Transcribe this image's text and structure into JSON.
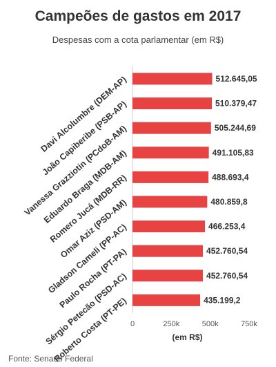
{
  "title": "Campeões de gastos em 2017",
  "subtitle": "Despesas com a cota parlamentar (em R$)",
  "source": "Fonte: Senado Federal",
  "colors": {
    "bar": "#e84343",
    "axis": "#cccccc",
    "grid": "#e6e6e6"
  },
  "chart_data": {
    "type": "bar",
    "orientation": "horizontal",
    "categories": [
      "Davi Alcolumbre (DEM-AP)",
      "João Capiberibe (PSB-AP)",
      "Vanessa Grazziotin (PCdoB-AM)",
      "Eduardo Braga (MDB-AM)",
      "Romero Jucá (MDB-RR)",
      "Omar Aziz (PSD-AM)",
      "Gladson Cameli (PP-AC)",
      "Paulo Rocha (PT-PA)",
      "Sérgio Petecão (PSD-AC)",
      "Roberto Costa (PT-PE)"
    ],
    "values": [
      512645.05,
      510379.47,
      505244.69,
      491105.83,
      488693.4,
      480859.8,
      466253.4,
      452760.54,
      452760.54,
      435199.2
    ],
    "value_labels": [
      "512.645,05",
      "510.379,47",
      "505.244,69",
      "491.105,83",
      "488.693,4",
      "480.859,8",
      "466.253,4",
      "452.760,54",
      "452.760,54",
      "435.199,2"
    ],
    "xlabel": "(em R$)",
    "xlim": [
      0,
      750000
    ],
    "ticks": [
      0,
      250000,
      500000,
      750000
    ],
    "tick_labels": [
      "0",
      "250k",
      "500k",
      "750k"
    ],
    "grid": false
  }
}
